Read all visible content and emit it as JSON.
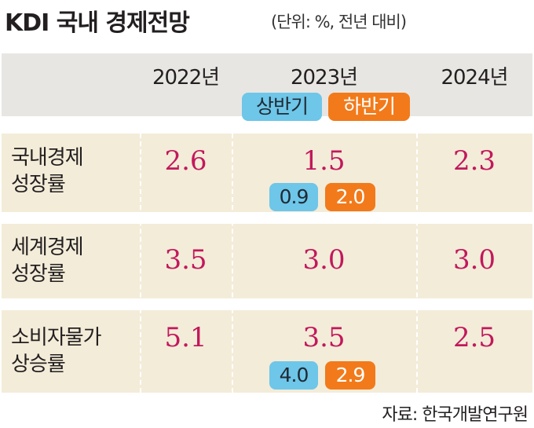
{
  "title": "KDI 국내 경제전망",
  "unit": "(단위: %, 전년 대비)",
  "table": {
    "columns": [
      "2022년",
      "2023년",
      "2024년"
    ],
    "half_labels": [
      "상반기",
      "하반기"
    ],
    "rows": [
      {
        "label": [
          "국내경제",
          "성장률"
        ],
        "values": [
          "2.6",
          "1.5",
          "2.3"
        ],
        "halves": [
          "0.9",
          "2.0"
        ]
      },
      {
        "label": [
          "세계경제",
          "성장률"
        ],
        "values": [
          "3.5",
          "3.0",
          "3.0"
        ]
      },
      {
        "label": [
          "소비자물가",
          "상승률"
        ],
        "values": [
          "5.1",
          "3.5",
          "2.5"
        ],
        "halves": [
          "4.0",
          "2.9"
        ]
      }
    ]
  },
  "source": "자료: 한국개발연구원"
}
